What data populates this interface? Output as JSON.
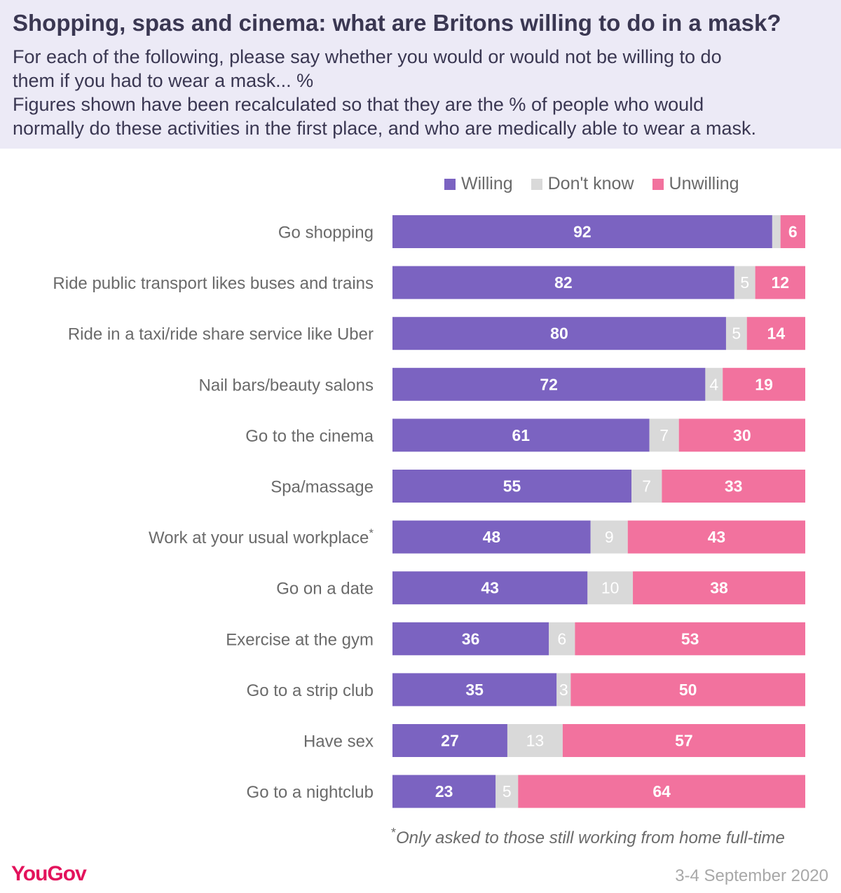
{
  "header": {
    "title": "Shopping, spas and cinema: what are Britons willing to do in a mask?",
    "subtitle_lines": [
      "For each of the following, please say whether you would or would not be willing to do",
      "them if you had to wear a mask... %",
      "Figures shown have been recalculated so that they are the % of people who would",
      "normally do these activities in the first place, and who are medically able to wear a mask."
    ]
  },
  "legend": [
    {
      "label": "Willing",
      "color": "#7B63C1"
    },
    {
      "label": "Don't know",
      "color": "#D9D9D9"
    },
    {
      "label": "Unwilling",
      "color": "#F2729E"
    }
  ],
  "chart_data": {
    "type": "bar",
    "orientation": "horizontal",
    "stacked": true,
    "categories": [
      "Go shopping",
      "Ride public transport likes buses and trains",
      "Ride in a taxi/ride share service like Uber",
      "Nail bars/beauty salons",
      "Go to the cinema",
      "Spa/massage",
      "Work at your usual workplace",
      "Go on a date",
      "Exercise at the gym",
      "Go to a strip club",
      "Have sex",
      "Go to a nightclub"
    ],
    "category_markers": [
      "",
      "",
      "",
      "",
      "",
      "",
      "*",
      "",
      "",
      "",
      "",
      ""
    ],
    "series": [
      {
        "name": "Willing",
        "color": "#7B63C1",
        "values": [
          92,
          82,
          80,
          72,
          61,
          55,
          48,
          43,
          36,
          35,
          27,
          23
        ]
      },
      {
        "name": "Don't know",
        "color": "#D9D9D9",
        "values": [
          2,
          5,
          5,
          4,
          7,
          7,
          9,
          10,
          6,
          3,
          13,
          5
        ]
      },
      {
        "name": "Unwilling",
        "color": "#F2729E",
        "values": [
          6,
          12,
          14,
          19,
          30,
          33,
          43,
          38,
          53,
          50,
          57,
          64
        ]
      }
    ],
    "value_labels": [
      [
        "92",
        "",
        "6"
      ],
      [
        "82",
        "5",
        "12"
      ],
      [
        "80",
        "5",
        "14"
      ],
      [
        "72",
        "4",
        "19"
      ],
      [
        "61",
        "7",
        "30"
      ],
      [
        "55",
        "7",
        "33"
      ],
      [
        "48",
        "9",
        "43"
      ],
      [
        "43",
        "10",
        "38"
      ],
      [
        "36",
        "6",
        "53"
      ],
      [
        "35",
        "3",
        "50"
      ],
      [
        "27",
        "13",
        "57"
      ],
      [
        "23",
        "5",
        "64"
      ]
    ],
    "unit": "%",
    "legend_position": "top"
  },
  "footnote": {
    "marker": "*",
    "text": "Only asked to those still working from home full-time"
  },
  "brand": "YouGov",
  "date": "3-4 September 2020"
}
